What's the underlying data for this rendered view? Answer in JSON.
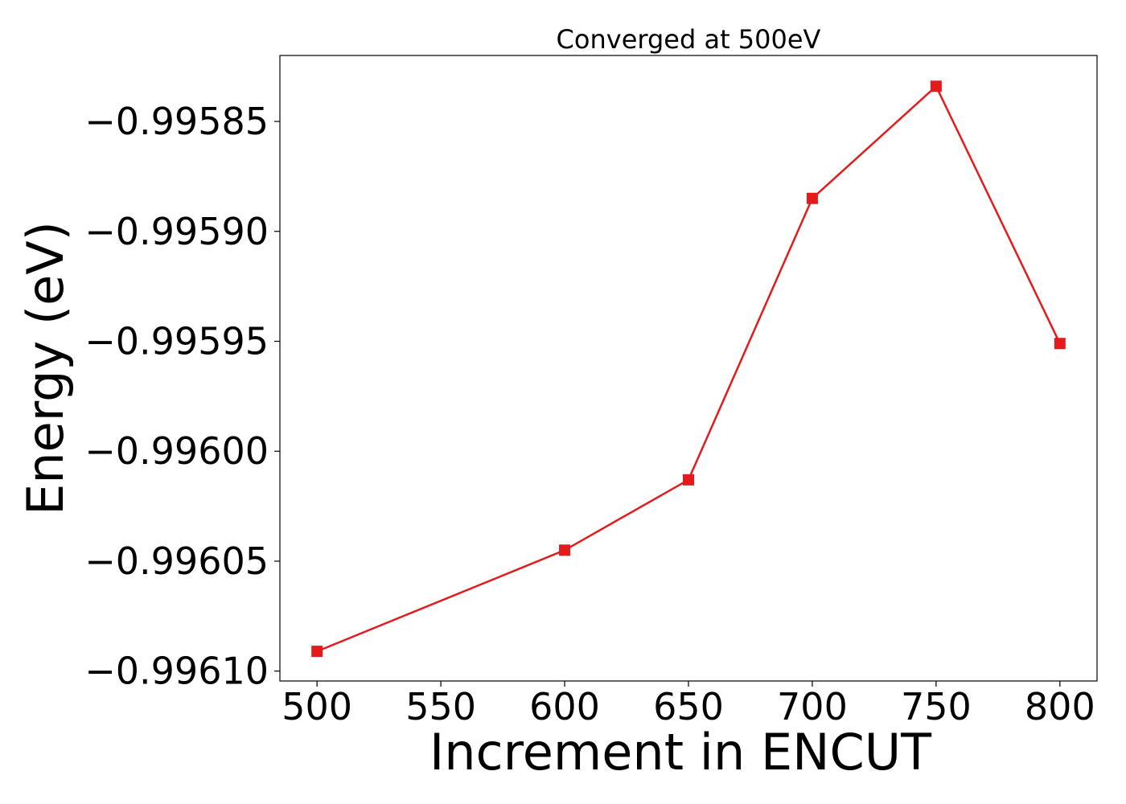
{
  "chart_data": {
    "type": "line",
    "title": "Converged at 500eV",
    "xlabel": "Increment in ENCUT",
    "ylabel": "Energy (eV)",
    "x": [
      500,
      600,
      650,
      700,
      750,
      800
    ],
    "series": [
      {
        "values": [
          -0.996091,
          -0.996045,
          -0.996013,
          -0.995885,
          -0.995834,
          -0.995951
        ],
        "color": "#e41a1c",
        "marker": "square"
      }
    ],
    "xlim": [
      485,
      815
    ],
    "ylim": [
      -0.9961045,
      -0.99582
    ],
    "xticks": [
      500,
      550,
      600,
      650,
      700,
      750,
      800
    ],
    "xtick_labels": [
      "500",
      "550",
      "600",
      "650",
      "700",
      "750",
      "800"
    ],
    "yticks": [
      -0.9961,
      -0.99605,
      -0.996,
      -0.99595,
      -0.9959,
      -0.99585
    ],
    "ytick_labels": [
      "−0.99610",
      "−0.99605",
      "−0.99600",
      "−0.99595",
      "−0.99590",
      "−0.99585"
    ],
    "grid": false,
    "legend": "none"
  }
}
